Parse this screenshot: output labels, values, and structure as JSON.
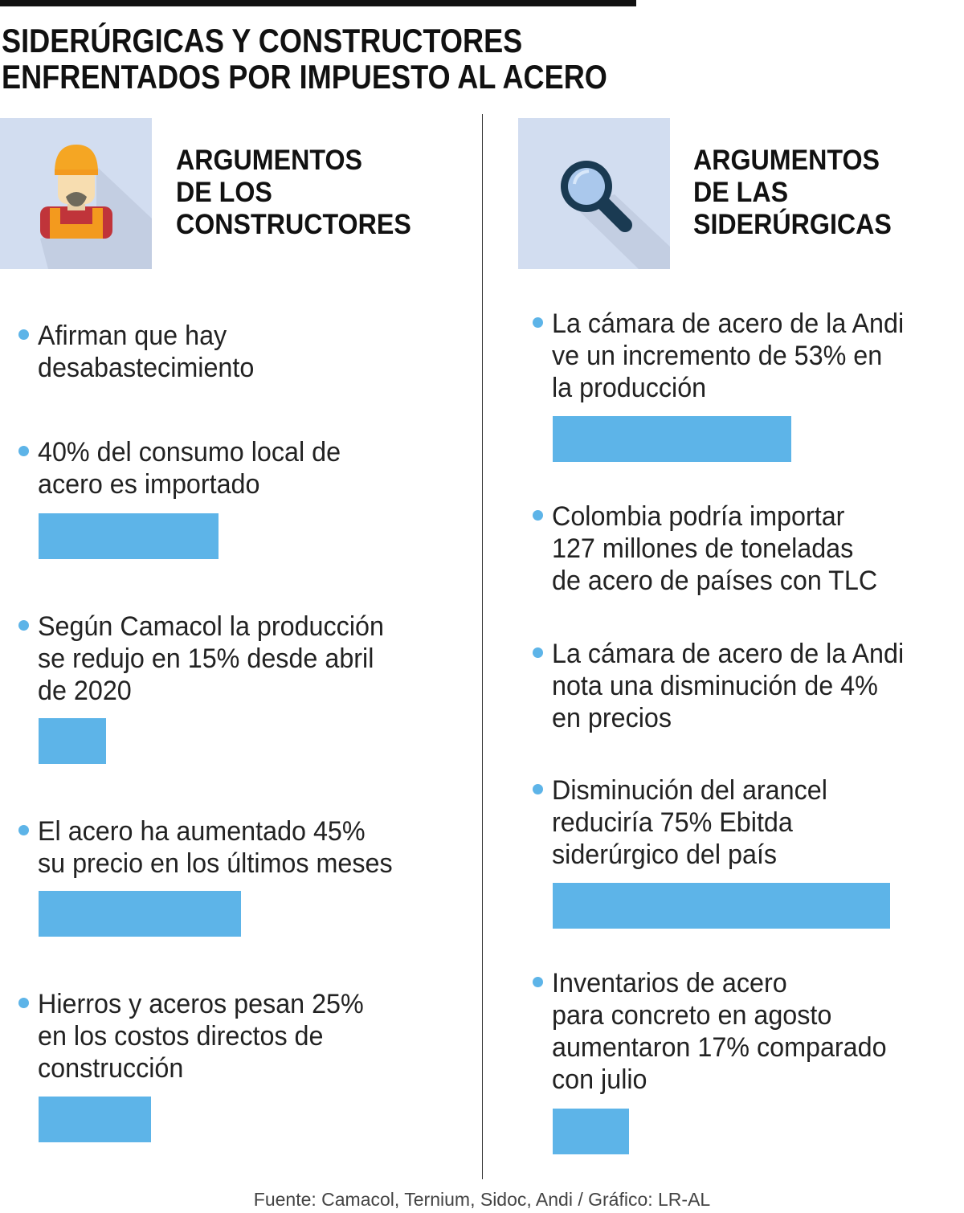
{
  "title": [
    "SIDERÚRGICAS Y CONSTRUCTORES",
    "ENFRENTADOS POR IMPUESTO AL ACERO"
  ],
  "colors": {
    "bar": "#5db4e8",
    "icon_bg": "#d2ddf0"
  },
  "left": {
    "icon": "construction-worker-icon",
    "heading": [
      "ARGUMENTOS",
      "DE LOS",
      "CONSTRUCTORES"
    ],
    "items": [
      {
        "text": "Afirman que hay\ndesabastecimiento",
        "value": null
      },
      {
        "text": "40% del consumo local de\nacero es importado",
        "value": 40
      },
      {
        "text": "Según Camacol la producción\nse redujo en 15% desde abril\nde 2020",
        "value": 15
      },
      {
        "text": "El acero ha aumentado 45%\nsu precio en los últimos meses",
        "value": 45
      },
      {
        "text": "Hierros y aceros pesan 25%\nen los costos directos de\nconstrucción",
        "value": 25
      }
    ]
  },
  "right": {
    "icon": "magnifying-glass-icon",
    "heading": [
      "ARGUMENTOS",
      "DE LAS",
      "SIDERÚRGICAS"
    ],
    "items": [
      {
        "text": "La cámara de acero de la Andi\nve un incremento de 53% en\nla producción",
        "value": 53
      },
      {
        "text": "Colombia podría importar\n127 millones de toneladas\nde acero de países con TLC",
        "value": null
      },
      {
        "text": "La cámara de acero de la Andi\nnota una disminución de 4%\nen precios",
        "value": null
      },
      {
        "text": "Disminución del arancel\nreduciría 75% Ebitda\nsiderúrgico del país",
        "value": 75
      },
      {
        "text": "Inventarios de acero\npara concreto en agosto\naumentaron 17% comparado\ncon julio",
        "value": 17
      }
    ]
  },
  "footer": "Fuente: Camacol, Ternium, Sidoc, Andi / Gráfico: LR-AL"
}
